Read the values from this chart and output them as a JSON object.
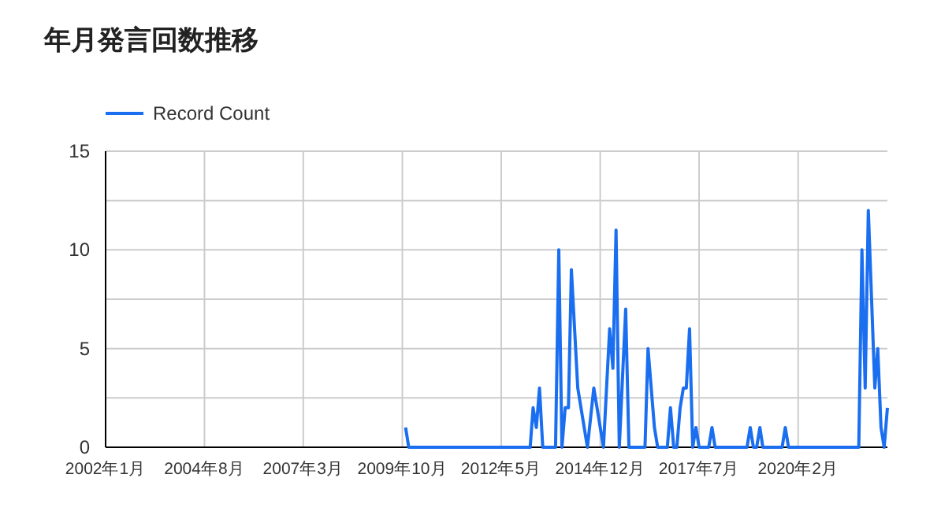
{
  "chart_data": {
    "type": "line",
    "title": "年月発言回数推移",
    "legend": "top left",
    "grid": true,
    "marker": "none",
    "line_style": "solid",
    "xlim": [
      "2002-01",
      "2022-06"
    ],
    "xticks": [
      {
        "value": "2002-01",
        "label": "2002年1月"
      },
      {
        "value": "2004-08",
        "label": "2004年8月"
      },
      {
        "value": "2007-03",
        "label": "2007年3月"
      },
      {
        "value": "2009-10",
        "label": "2009年10月"
      },
      {
        "value": "2012-05",
        "label": "2012年5月"
      },
      {
        "value": "2014-12",
        "label": "2014年12月"
      },
      {
        "value": "2017-07",
        "label": "2017年7月"
      },
      {
        "value": "2020-02",
        "label": "2020年2月"
      }
    ],
    "ylim": [
      0,
      15
    ],
    "yticks": [
      0,
      {
        "value": 2.5,
        "label": null
      },
      5,
      {
        "value": 7.5,
        "label": null
      },
      10,
      {
        "value": 12.5,
        "label": null
      },
      15
    ],
    "x": [
      "2009-11",
      "2009-12",
      "2013-02",
      "2013-03",
      "2013-04",
      "2013-05",
      "2013-06",
      "2013-10",
      "2013-11",
      "2013-12",
      "2014-01",
      "2014-02",
      "2014-03",
      "2014-05",
      "2014-08",
      "2014-10",
      "2015-01",
      "2015-03",
      "2015-04",
      "2015-05",
      "2015-06",
      "2015-08",
      "2015-09",
      "2016-02",
      "2016-03",
      "2016-05",
      "2016-06",
      "2016-09",
      "2016-10",
      "2016-11",
      "2016-12",
      "2017-01",
      "2017-02",
      "2017-03",
      "2017-04",
      "2017-05",
      "2017-06",
      "2017-07",
      "2017-10",
      "2017-11",
      "2017-12",
      "2018-10",
      "2018-11",
      "2018-12",
      "2019-01",
      "2019-02",
      "2019-03",
      "2019-09",
      "2019-10",
      "2019-11",
      "2021-09",
      "2021-10",
      "2021-11",
      "2021-12",
      "2022-02",
      "2022-03",
      "2022-04",
      "2022-05",
      "2022-06"
    ],
    "series": [
      {
        "name": "Record Count",
        "color": "#1a6ef0",
        "values": [
          1,
          0,
          0,
          2,
          1,
          3,
          0,
          0,
          10,
          0,
          2,
          2,
          9,
          3,
          0,
          3,
          0,
          6,
          4,
          11,
          0,
          7,
          0,
          0,
          5,
          1,
          0,
          0,
          2,
          0,
          0,
          2,
          3,
          3,
          6,
          0,
          1,
          0,
          0,
          1,
          0,
          0,
          1,
          0,
          0,
          1,
          0,
          0,
          1,
          0,
          0,
          10,
          3,
          12,
          3,
          5,
          1,
          0,
          2
        ]
      }
    ]
  }
}
